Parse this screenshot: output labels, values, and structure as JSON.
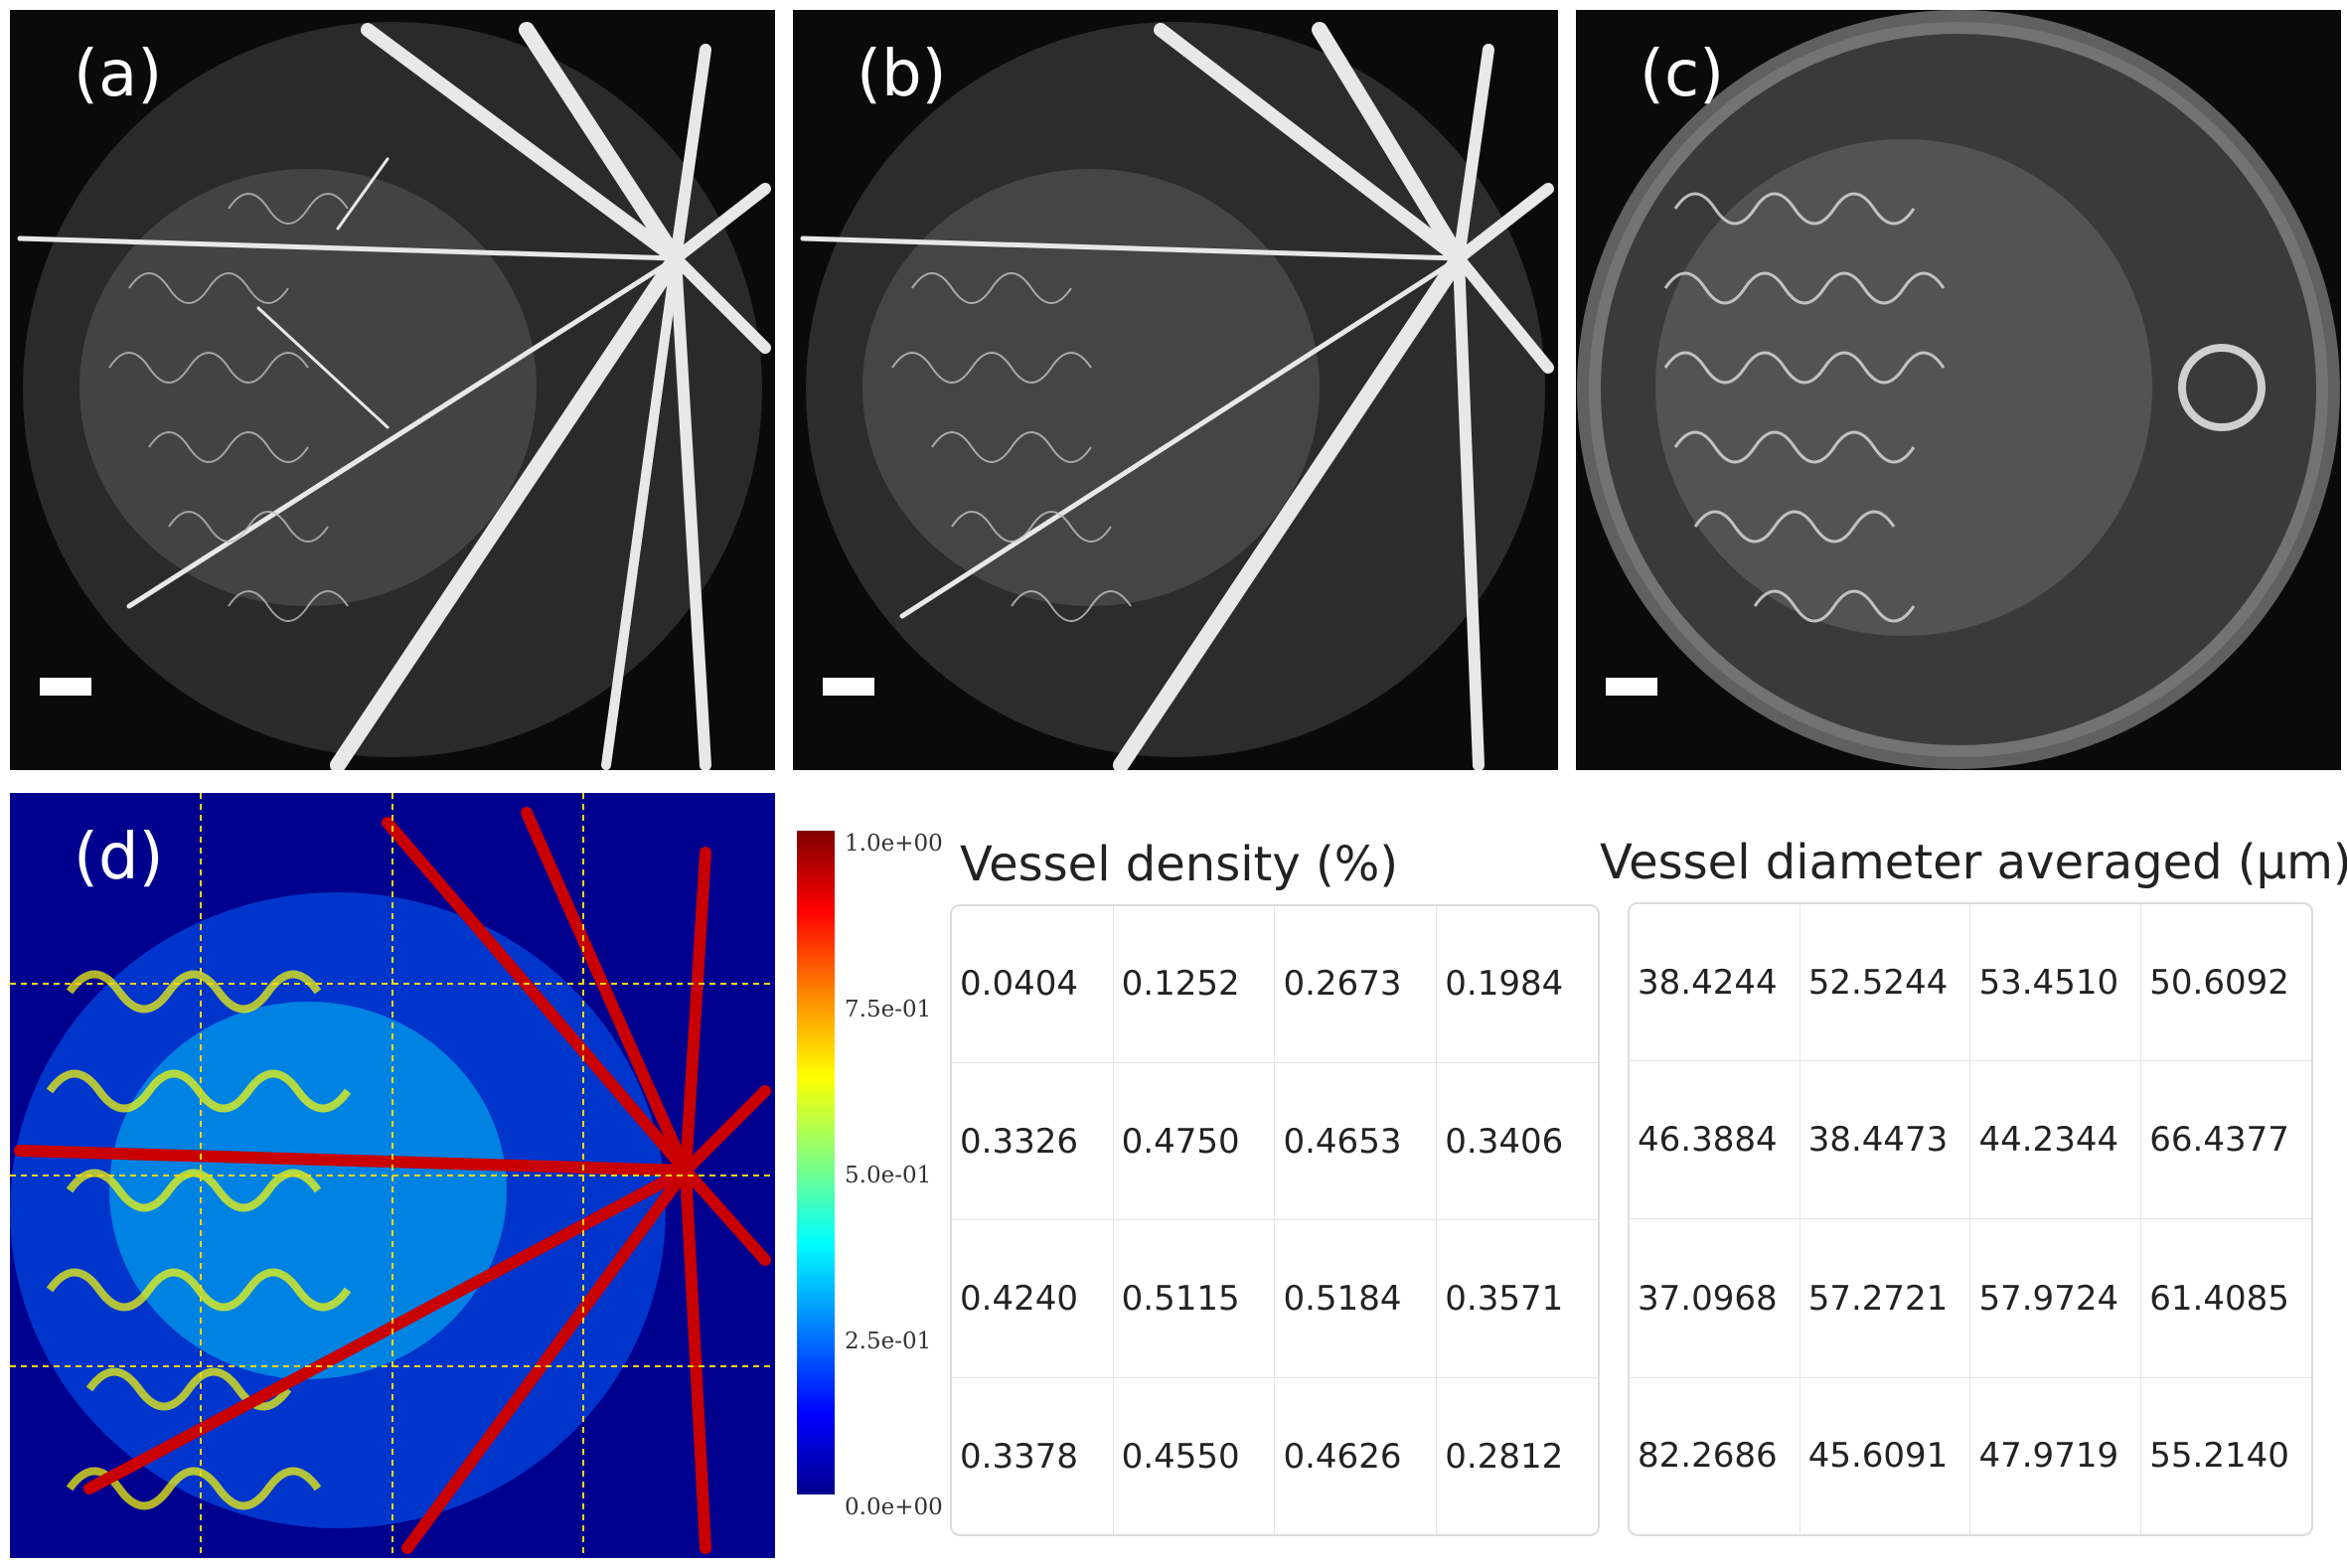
{
  "panels": {
    "a": {
      "label": "(a)"
    },
    "b": {
      "label": "(b)"
    },
    "c": {
      "label": "(c)"
    },
    "d": {
      "label": "(d)"
    }
  },
  "colorbar": {
    "ticks": [
      "1.0e+00",
      "7.5e-01",
      "5.0e-01",
      "2.5e-01",
      "0.0e+00"
    ],
    "colormap": "jet"
  },
  "density_table": {
    "title": "Vessel density (%)",
    "rows": [
      [
        "0.0404",
        "0.1252",
        "0.2673",
        "0.1984"
      ],
      [
        "0.3326",
        "0.4750",
        "0.4653",
        "0.3406"
      ],
      [
        "0.4240",
        "0.5115",
        "0.5184",
        "0.3571"
      ],
      [
        "0.3378",
        "0.4550",
        "0.4626",
        "0.2812"
      ]
    ]
  },
  "diameter_table": {
    "title": "Vessel diameter averaged (μm)",
    "rows": [
      [
        "38.4244",
        "52.5244",
        "53.4510",
        "50.6092"
      ],
      [
        "46.3884",
        "38.4473",
        "44.2344",
        "66.4377"
      ],
      [
        "37.0968",
        "57.2721",
        "57.9724",
        "61.4085"
      ],
      [
        "82.2686",
        "45.6091",
        "47.9719",
        "55.2140"
      ]
    ]
  }
}
